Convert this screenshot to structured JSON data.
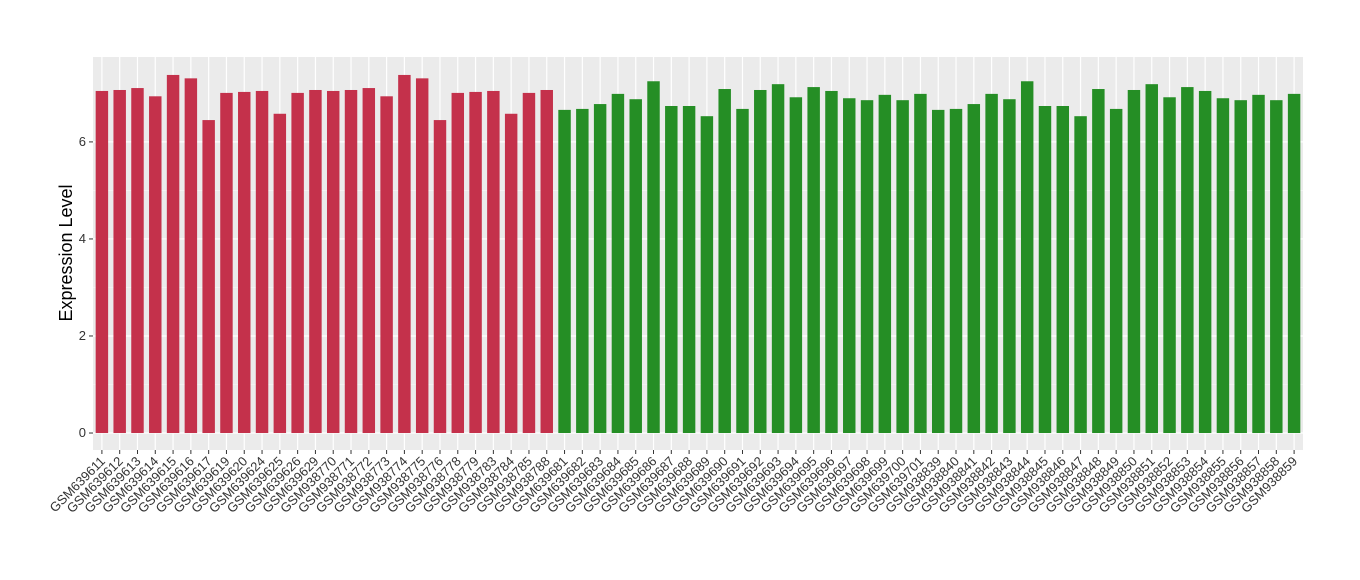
{
  "chart_data": {
    "type": "bar",
    "y_label": "Expression Level",
    "categories": [
      "GSM639611",
      "GSM639612",
      "GSM639613",
      "GSM639614",
      "GSM639615",
      "GSM639616",
      "GSM639617",
      "GSM639619",
      "GSM639620",
      "GSM639624",
      "GSM639625",
      "GSM639626",
      "GSM639629",
      "GSM938770",
      "GSM938771",
      "GSM938772",
      "GSM938773",
      "GSM938774",
      "GSM938775",
      "GSM938776",
      "GSM938778",
      "GSM938779",
      "GSM938783",
      "GSM938784",
      "GSM938785",
      "GSM938788",
      "GSM639681",
      "GSM639682",
      "GSM639683",
      "GSM639684",
      "GSM639685",
      "GSM639686",
      "GSM639687",
      "GSM639688",
      "GSM639689",
      "GSM639690",
      "GSM639691",
      "GSM639692",
      "GSM639693",
      "GSM639694",
      "GSM639695",
      "GSM639696",
      "GSM639697",
      "GSM639698",
      "GSM639699",
      "GSM639700",
      "GSM639701",
      "GSM938839",
      "GSM938840",
      "GSM938841",
      "GSM938842",
      "GSM938843",
      "GSM938844",
      "GSM938845",
      "GSM938846",
      "GSM938847",
      "GSM938848",
      "GSM938849",
      "GSM938850",
      "GSM938851",
      "GSM938852",
      "GSM938853",
      "GSM938854",
      "GSM938855",
      "GSM938856",
      "GSM938857",
      "GSM938858",
      "GSM938859"
    ],
    "values": [
      7.05,
      7.07,
      7.11,
      6.94,
      7.38,
      7.31,
      6.45,
      7.01,
      7.03,
      7.05,
      6.58,
      7.01,
      7.07,
      7.05,
      7.07,
      7.11,
      6.94,
      7.38,
      7.31,
      6.45,
      7.01,
      7.03,
      7.05,
      6.58,
      7.01,
      7.07,
      6.66,
      6.68,
      6.78,
      6.99,
      6.88,
      7.25,
      6.74,
      6.74,
      6.53,
      7.09,
      6.68,
      7.07,
      7.19,
      6.92,
      7.13,
      7.05,
      6.9,
      6.86,
      6.97,
      6.86,
      6.99,
      6.66,
      6.68,
      6.78,
      6.99,
      6.88,
      7.25,
      6.74,
      6.74,
      6.53,
      7.09,
      6.68,
      7.07,
      7.19,
      6.92,
      7.13,
      7.05,
      6.9,
      6.86,
      6.97,
      6.86,
      6.99
    ],
    "colors": [
      "#c4314b",
      "#c4314b",
      "#c4314b",
      "#c4314b",
      "#c4314b",
      "#c4314b",
      "#c4314b",
      "#c4314b",
      "#c4314b",
      "#c4314b",
      "#c4314b",
      "#c4314b",
      "#c4314b",
      "#c4314b",
      "#c4314b",
      "#c4314b",
      "#c4314b",
      "#c4314b",
      "#c4314b",
      "#c4314b",
      "#c4314b",
      "#c4314b",
      "#c4314b",
      "#c4314b",
      "#c4314b",
      "#c4314b",
      "#258e25",
      "#258e25",
      "#258e25",
      "#258e25",
      "#258e25",
      "#258e25",
      "#258e25",
      "#258e25",
      "#258e25",
      "#258e25",
      "#258e25",
      "#258e25",
      "#258e25",
      "#258e25",
      "#258e25",
      "#258e25",
      "#258e25",
      "#258e25",
      "#258e25",
      "#258e25",
      "#258e25",
      "#258e25",
      "#258e25",
      "#258e25",
      "#258e25",
      "#258e25",
      "#258e25",
      "#258e25",
      "#258e25",
      "#258e25",
      "#258e25",
      "#258e25",
      "#258e25",
      "#258e25",
      "#258e25",
      "#258e25",
      "#258e25",
      "#258e25",
      "#258e25",
      "#258e25",
      "#258e25",
      "#258e25"
    ],
    "ylim": [
      -0.35,
      7.75
    ],
    "yticks": [
      0,
      2,
      4,
      6
    ],
    "grid": true
  }
}
